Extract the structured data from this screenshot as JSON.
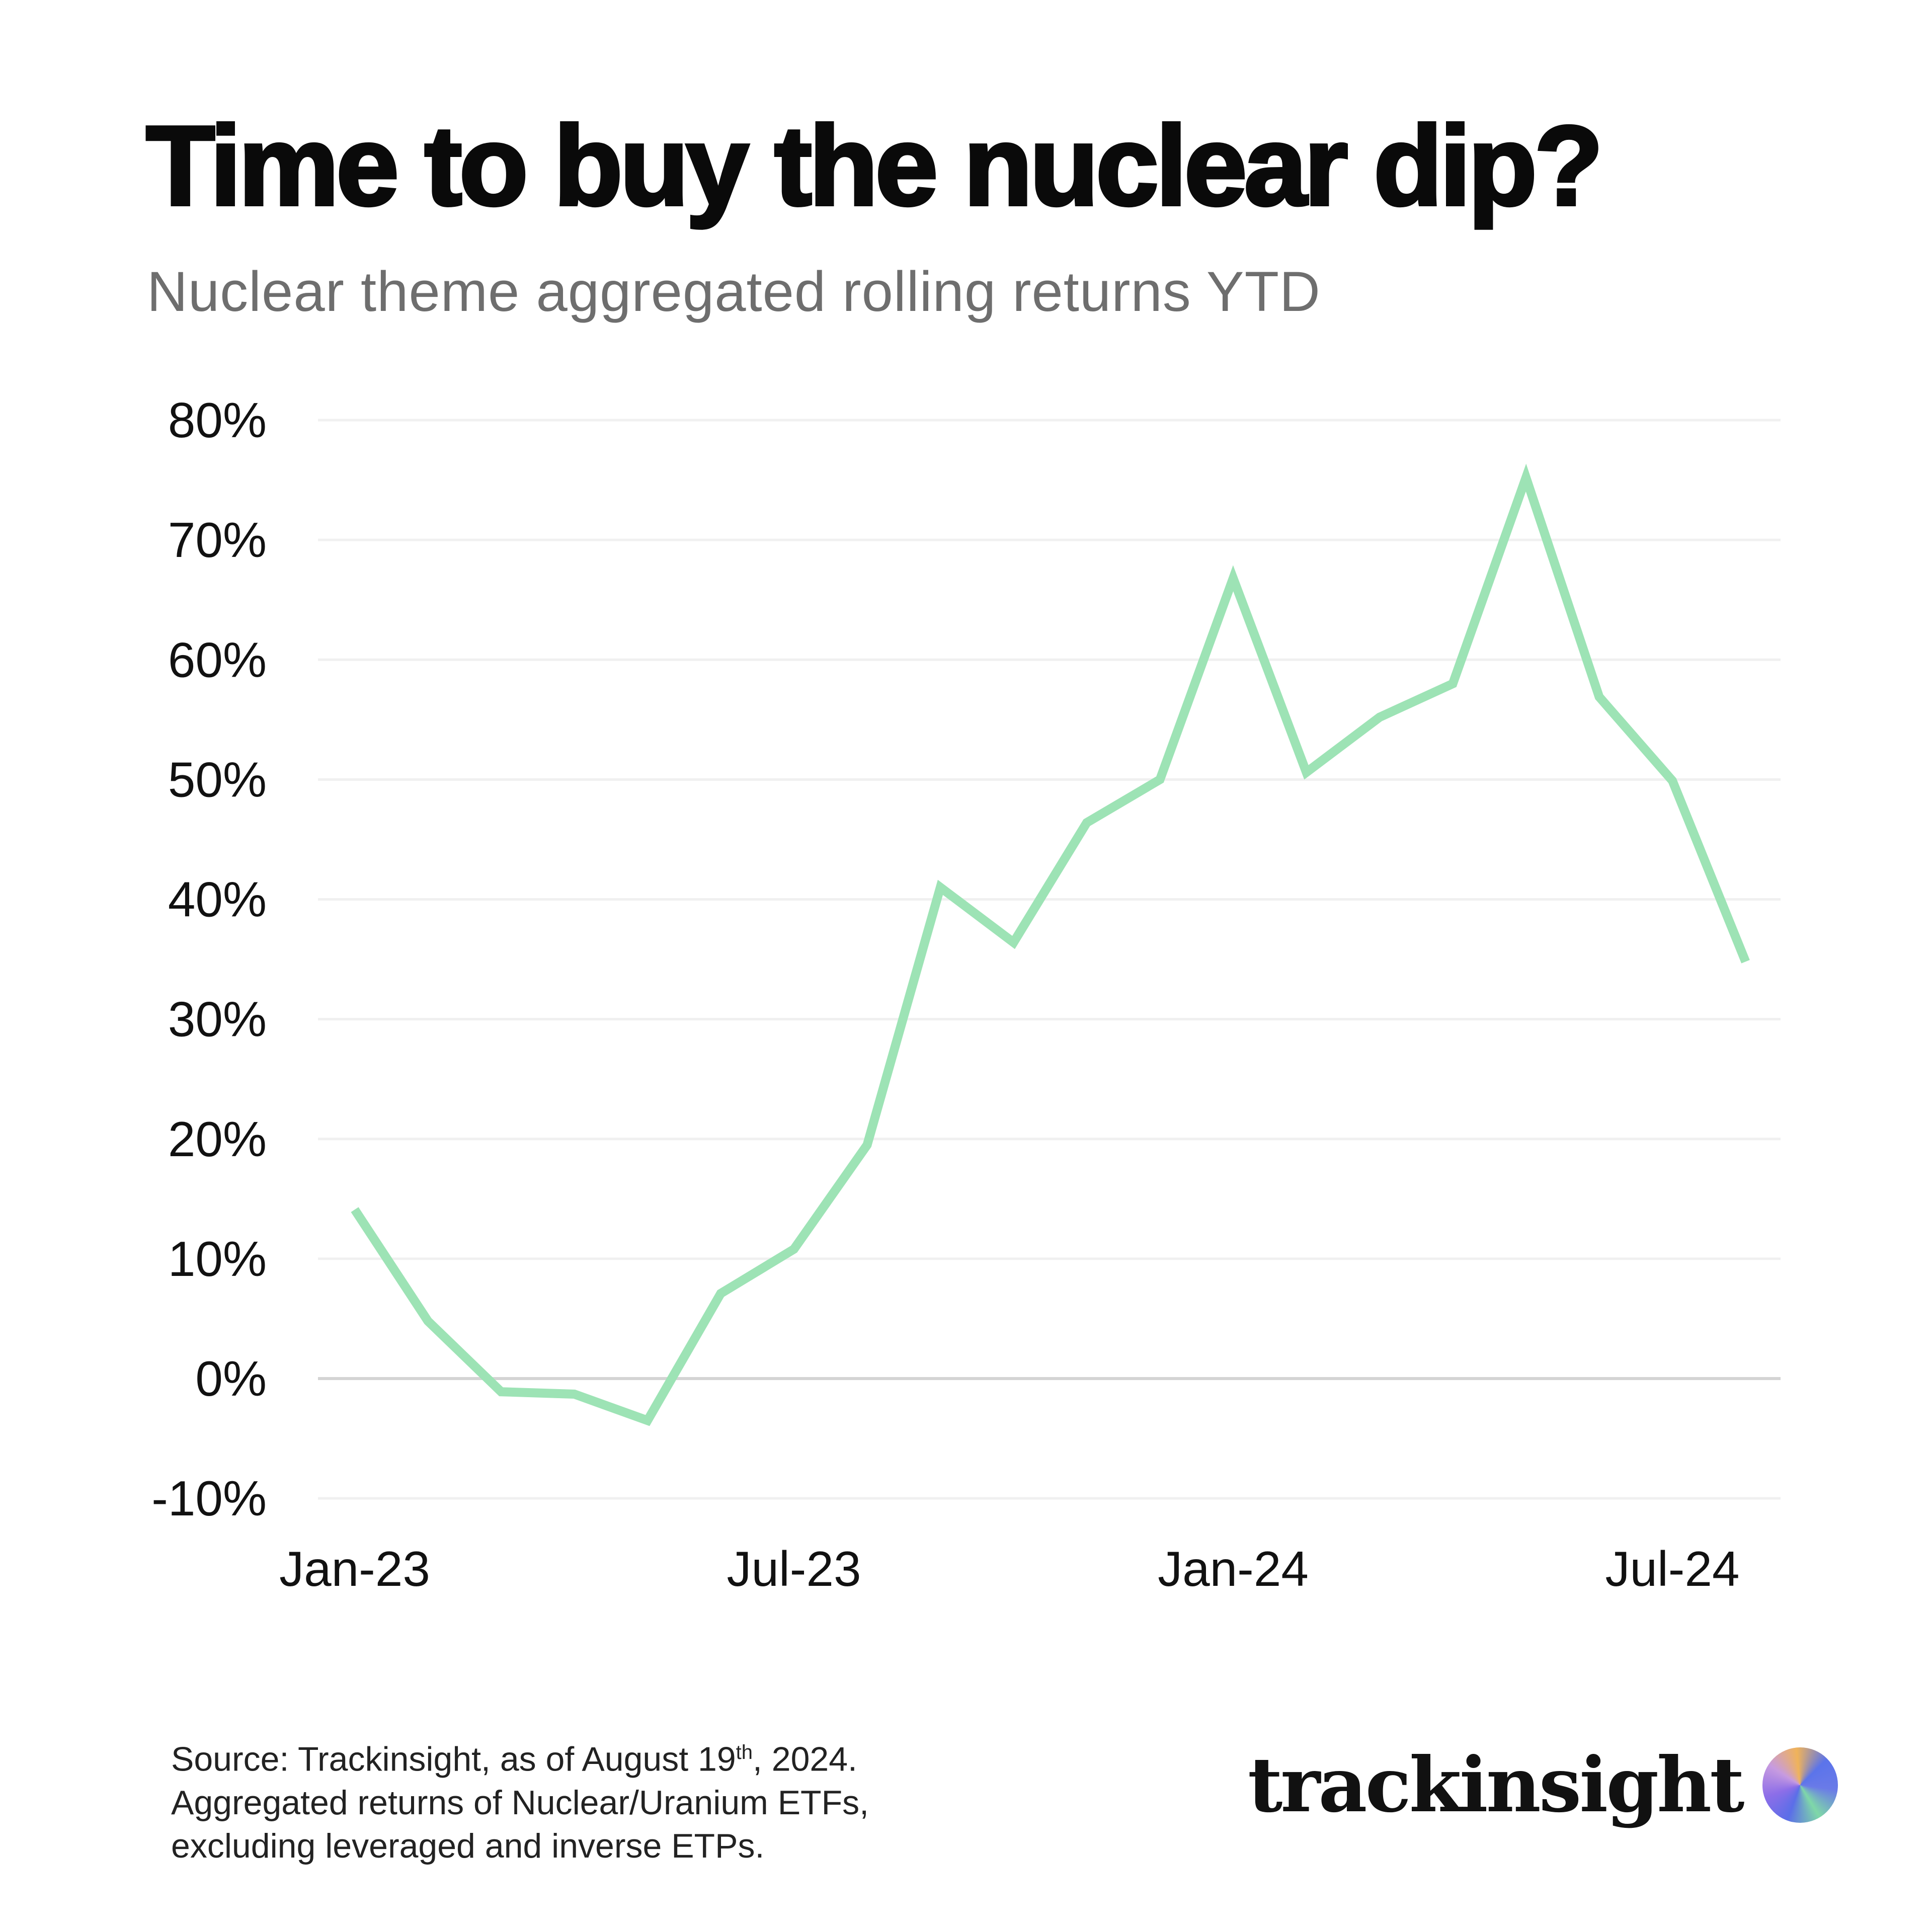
{
  "title": "Time to buy the nuclear dip?",
  "subtitle": "Nuclear theme aggregated rolling returns YTD",
  "chart_data": {
    "type": "line",
    "title": "Time to buy the nuclear dip?",
    "subtitle": "Nuclear theme aggregated rolling returns YTD",
    "xlabel": "",
    "ylabel": "",
    "x": [
      "Jan-23",
      "Feb-23",
      "Mar-23",
      "Apr-23",
      "May-23",
      "Jun-23",
      "Jul-23",
      "Aug-23",
      "Sep-23",
      "Oct-23",
      "Nov-23",
      "Dec-23",
      "Jan-24",
      "Feb-24",
      "Mar-24",
      "Apr-24",
      "May-24",
      "Jun-24",
      "Jul-24",
      "Aug-24"
    ],
    "values": [
      14.1,
      4.8,
      -1.1,
      -1.3,
      -3.5,
      7.1,
      10.8,
      19.5,
      41.0,
      36.4,
      46.4,
      50.0,
      66.8,
      50.6,
      55.2,
      58.0,
      75.2,
      56.9,
      49.9,
      34.8
    ],
    "x_tick_labels": [
      "Jan-23",
      "Jul-23",
      "Jan-24",
      "Jul-24"
    ],
    "y_tick_labels": [
      "80%",
      "70%",
      "60%",
      "50%",
      "40%",
      "30%",
      "20%",
      "10%",
      "0%",
      "-10%"
    ],
    "y_ticks": [
      80,
      70,
      60,
      50,
      40,
      30,
      20,
      10,
      0,
      -10
    ],
    "ylim": [
      -10,
      80
    ],
    "grid": true,
    "line_color": "#9de3b5"
  },
  "footer": {
    "source_prefix": "Source: Trackinsight, as of August 19",
    "source_sup": "th",
    "source_suffix": ", 2024.",
    "line2": "Aggregated returns of Nuclear/Uranium ETFs,",
    "line3": "excluding leveraged and inverse ETPs."
  },
  "logo": {
    "text": "trackinsight"
  }
}
